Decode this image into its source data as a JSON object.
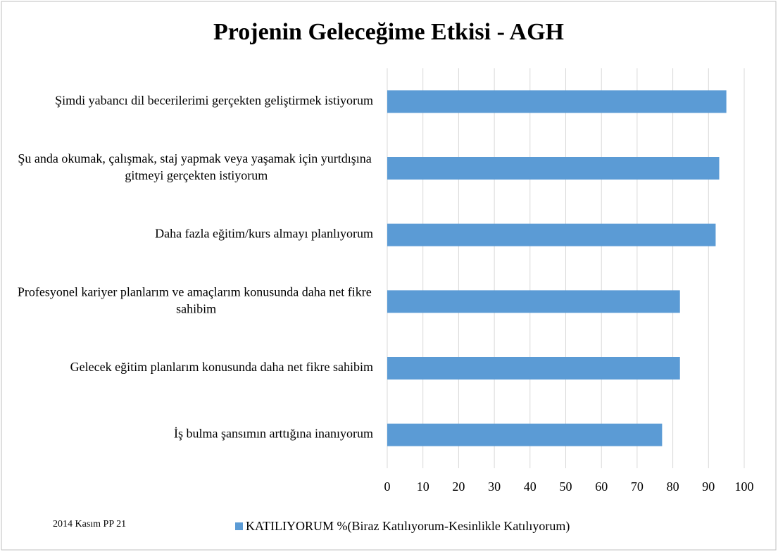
{
  "chart_data": {
    "type": "bar",
    "orientation": "horizontal",
    "title": "Projenin Geleceğime Etkisi - AGH",
    "categories": [
      "Şimdi yabancı dil becerilerimi gerçekten geliştirmek istiyorum",
      "Şu anda okumak, çalışmak, staj yapmak veya yaşamak için yurtdışına gitmeyi gerçekten istiyorum",
      "Daha fazla eğitim/kurs almayı planlıyorum",
      "Profesyonel kariyer planlarım ve amaçlarım konusunda daha net fikre sahibim",
      "Gelecek eğitim planlarım konusunda daha net fikre sahibim",
      "İş bulma şansımın arttığına inanıyorum"
    ],
    "series": [
      {
        "name": "KATILIYORUM %(Biraz Katılıyorum-Kesinlikle Katılıyorum)",
        "color": "#5b9bd5",
        "values": [
          95,
          93,
          92,
          82,
          82,
          77
        ]
      }
    ],
    "xlim": [
      0,
      100
    ],
    "xticks": [
      0,
      10,
      20,
      30,
      40,
      50,
      60,
      70,
      80,
      90,
      100
    ],
    "grid": true,
    "legend": "bottom",
    "footnote": "2014 Kasım PP 21"
  }
}
